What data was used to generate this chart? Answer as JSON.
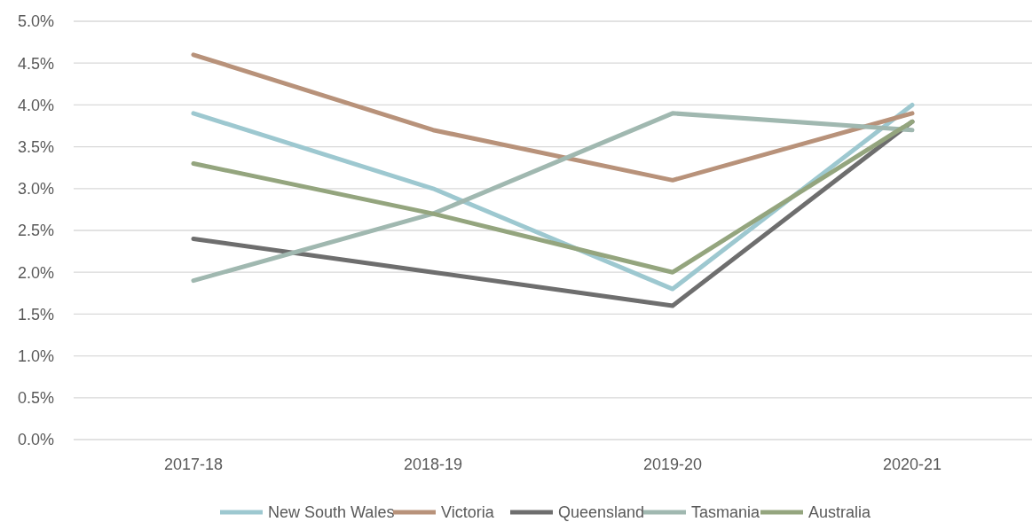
{
  "chart_data": {
    "type": "line",
    "categories": [
      "2017-18",
      "2018-19",
      "2019-20",
      "2020-21"
    ],
    "series": [
      {
        "name": "New South Wales",
        "color": "#9dc8d0",
        "values": [
          3.9,
          3.0,
          1.8,
          4.0
        ]
      },
      {
        "name": "Victoria",
        "color": "#b8927a",
        "values": [
          4.6,
          3.7,
          3.1,
          3.9
        ]
      },
      {
        "name": "Queensland",
        "color": "#6e6e6e",
        "values": [
          2.4,
          2.0,
          1.6,
          3.8
        ]
      },
      {
        "name": "Tasmania",
        "color": "#a0b8b0",
        "values": [
          1.9,
          2.7,
          3.9,
          3.7
        ]
      },
      {
        "name": "Australia",
        "color": "#94a57e",
        "values": [
          3.3,
          2.7,
          2.0,
          3.8
        ]
      }
    ],
    "ylim": [
      0,
      5
    ],
    "yticks": [
      {
        "value": 0,
        "label": "0.0%"
      },
      {
        "value": 0.5,
        "label": "0.5%"
      },
      {
        "value": 1,
        "label": "1.0%"
      },
      {
        "value": 1.5,
        "label": "1.5%"
      },
      {
        "value": 2,
        "label": "2.0%"
      },
      {
        "value": 2.5,
        "label": "2.5%"
      },
      {
        "value": 3,
        "label": "3.0%"
      },
      {
        "value": 3.5,
        "label": "3.5%"
      },
      {
        "value": 4,
        "label": "4.0%"
      },
      {
        "value": 4.5,
        "label": "4.5%"
      },
      {
        "value": 5,
        "label": "5.0%"
      }
    ],
    "grid": "y",
    "legend": "bottom",
    "marker": "none",
    "line_style": "solid"
  }
}
